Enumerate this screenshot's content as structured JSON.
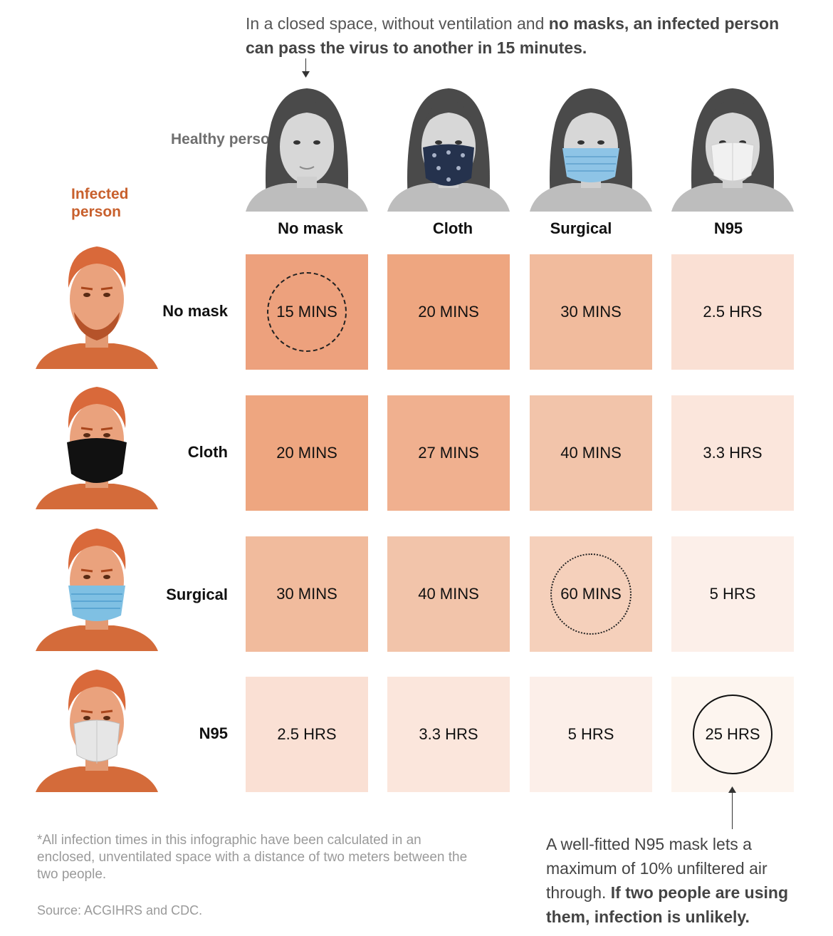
{
  "top_note": {
    "plain": "In a closed space, without ventilation and ",
    "bold": "no masks, an infected person can pass the virus to another in 15 minutes."
  },
  "labels": {
    "healthy_person": "Healthy person",
    "infected_person": "Infected person"
  },
  "columns": [
    "No mask",
    "Cloth",
    "Surgical",
    "N95"
  ],
  "rows": [
    "No mask",
    "Cloth",
    "Surgical",
    "N95"
  ],
  "grid": [
    [
      {
        "text": "15 MINS",
        "color": "#eda17d",
        "ring": "dashed"
      },
      {
        "text": "20 MINS",
        "color": "#eea680"
      },
      {
        "text": "30 MINS",
        "color": "#f1bb9d"
      },
      {
        "text": "2.5 HRS",
        "color": "#fae0d4"
      }
    ],
    [
      {
        "text": "20 MINS",
        "color": "#eea680"
      },
      {
        "text": "27 MINS",
        "color": "#f0b08f"
      },
      {
        "text": "40 MINS",
        "color": "#f2c4aa"
      },
      {
        "text": "3.3 HRS",
        "color": "#fbe6dc"
      }
    ],
    [
      {
        "text": "30 MINS",
        "color": "#f1bb9d"
      },
      {
        "text": "40 MINS",
        "color": "#f2c4aa"
      },
      {
        "text": "60 MINS",
        "color": "#f5d0bb",
        "ring": "dotted"
      },
      {
        "text": "5 HRS",
        "color": "#fcefe9"
      }
    ],
    [
      {
        "text": "2.5 HRS",
        "color": "#fae0d4"
      },
      {
        "text": "3.3 HRS",
        "color": "#fbe6dc"
      },
      {
        "text": "5 HRS",
        "color": "#fcefe9"
      },
      {
        "text": "25 HRS",
        "color": "#fdf5ef",
        "ring": "solid"
      }
    ]
  ],
  "footnote": "*All infection times in this infographic have been calculated in an enclosed, unventilated space with a distance of two meters between the two people.",
  "source": "Source: ACGIHRS and CDC.",
  "callout": {
    "plain": "A well-fitted N95 mask lets a maximum of 10% unfiltered air through. ",
    "bold": "If two people are using them, infection is unlikely."
  },
  "colors": {
    "accent_infected": "#c8602d",
    "infected_tint": "#d9693a",
    "label_gray": "#6f6f6f"
  },
  "icons": {
    "healthy_portraits": [
      "healthy-person-no-mask-icon",
      "healthy-person-cloth-mask-icon",
      "healthy-person-surgical-mask-icon",
      "healthy-person-n95-mask-icon"
    ],
    "infected_portraits": [
      "infected-person-no-mask-icon",
      "infected-person-cloth-mask-icon",
      "infected-person-surgical-mask-icon",
      "infected-person-n95-mask-icon"
    ]
  }
}
